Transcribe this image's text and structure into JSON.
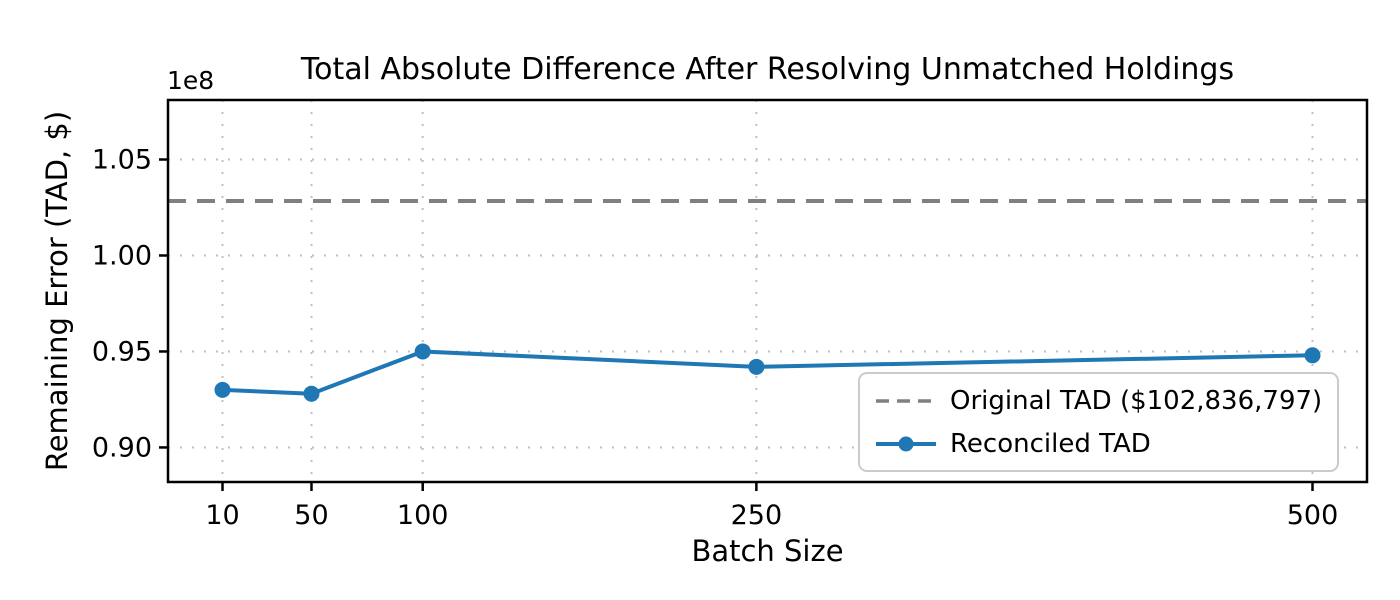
{
  "chart_data": {
    "type": "line",
    "title": "Total Absolute Difference After Resolving Unmatched Holdings",
    "xlabel": "Batch Size",
    "ylabel": "Remaining Error (TAD, $)",
    "y_offset_label": "1e8",
    "x": [
      10,
      50,
      100,
      250,
      500
    ],
    "x_tick_labels": [
      "10",
      "50",
      "100",
      "250",
      "500"
    ],
    "y_ticks": [
      90000000,
      95000000,
      100000000,
      105000000
    ],
    "y_tick_labels": [
      "0.90",
      "0.95",
      "1.00",
      "1.05"
    ],
    "xlim": [
      -14.5,
      524.5
    ],
    "ylim": [
      88200000,
      108100000
    ],
    "grid": true,
    "grid_color": "#c0c0c0",
    "axis_color": "#000000",
    "background": "#ffffff",
    "legend_position": "lower right",
    "series": [
      {
        "name": "Original TAD ($102,836,797)",
        "type": "hline",
        "value": 102836797,
        "color": "#808080",
        "style": "dashed"
      },
      {
        "name": "Reconciled TAD",
        "type": "line",
        "values": [
          93000000,
          92800000,
          95000000,
          94200000,
          94800000
        ],
        "color": "#1f77b4",
        "marker": "circle"
      }
    ]
  }
}
